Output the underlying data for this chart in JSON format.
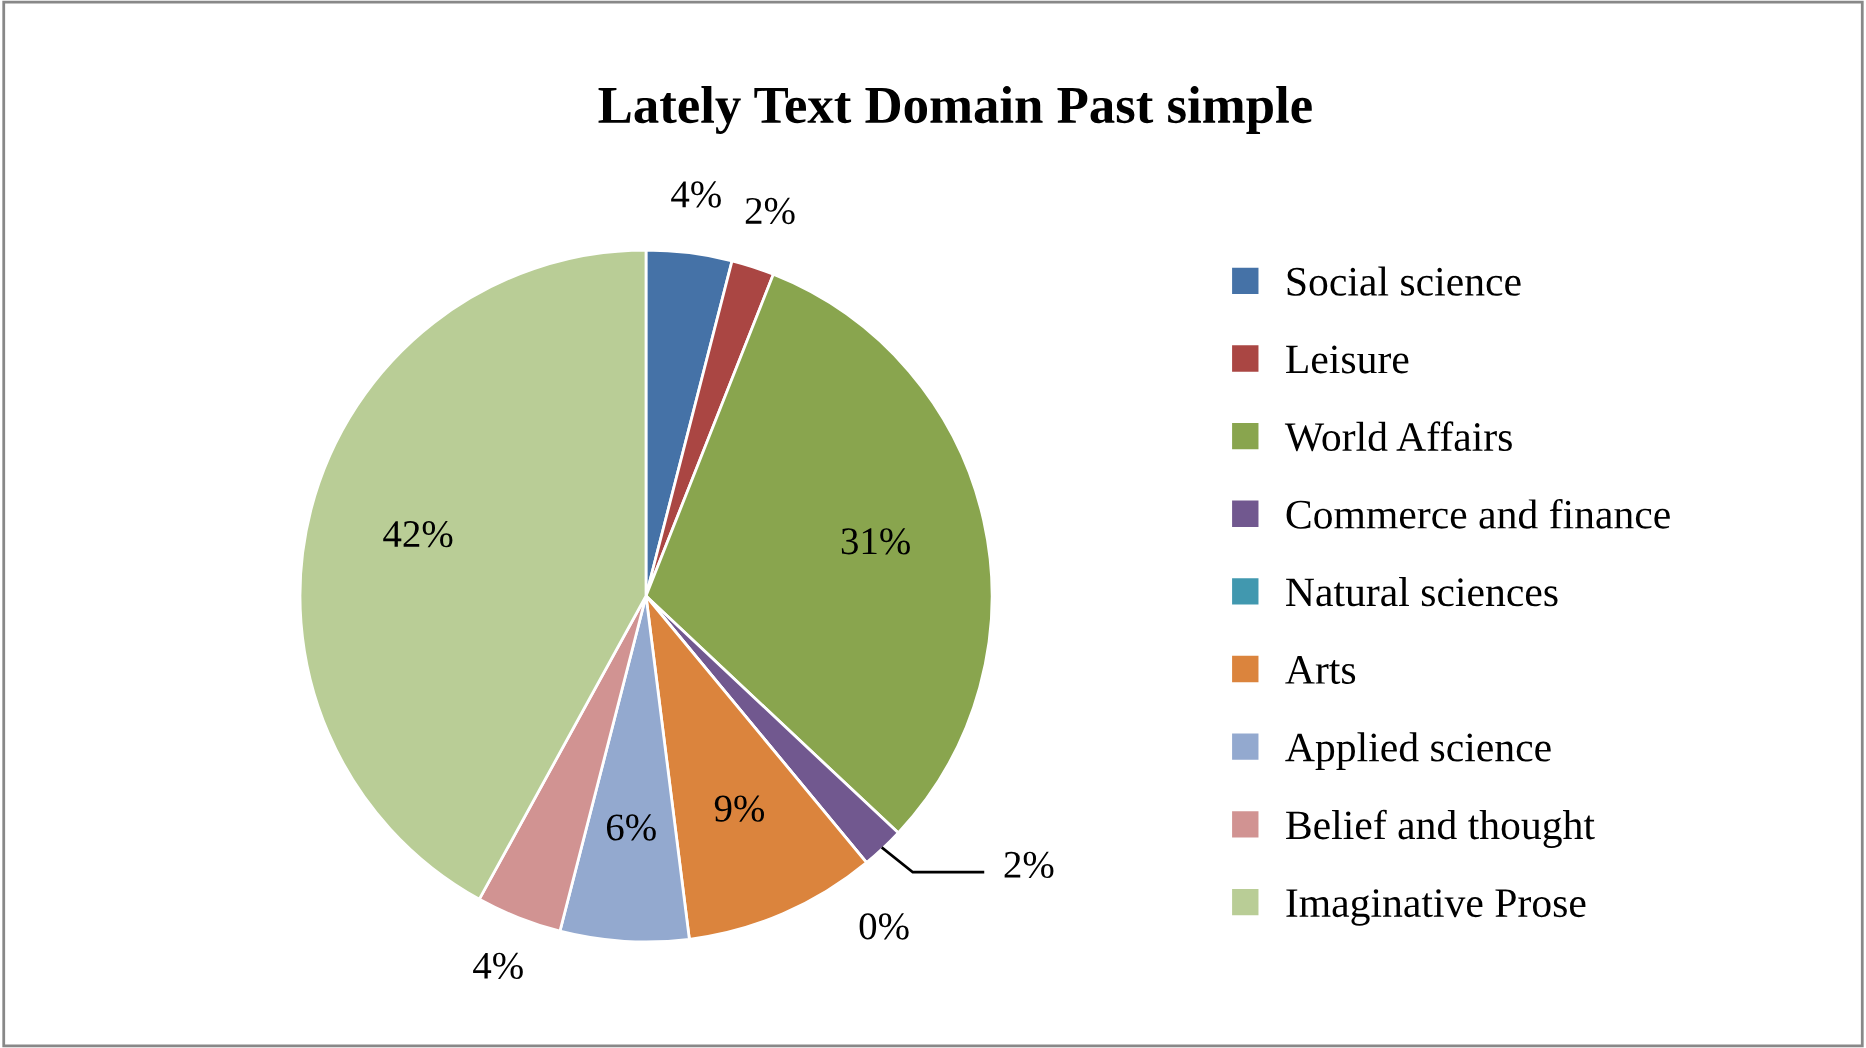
{
  "chart_data": {
    "type": "pie",
    "title": "Lately Text Domain Past simple",
    "categories": [
      "Social science",
      "Leisure",
      "World Affairs",
      "Commerce and finance",
      "Natural sciences",
      "Arts",
      "Applied science",
      "Belief and thought",
      "Imaginative Prose"
    ],
    "values": [
      4,
      2,
      31,
      2,
      0,
      9,
      6,
      4,
      42
    ],
    "value_labels": [
      "4%",
      "2%",
      "31%",
      "2%",
      "0%",
      "9%",
      "6%",
      "4%",
      "42%"
    ],
    "colors": [
      "#4572a7",
      "#aa4643",
      "#89a54e",
      "#71588f",
      "#4198af",
      "#db843d",
      "#93a9cf",
      "#d19392",
      "#b9cd96"
    ],
    "legend": "right"
  }
}
